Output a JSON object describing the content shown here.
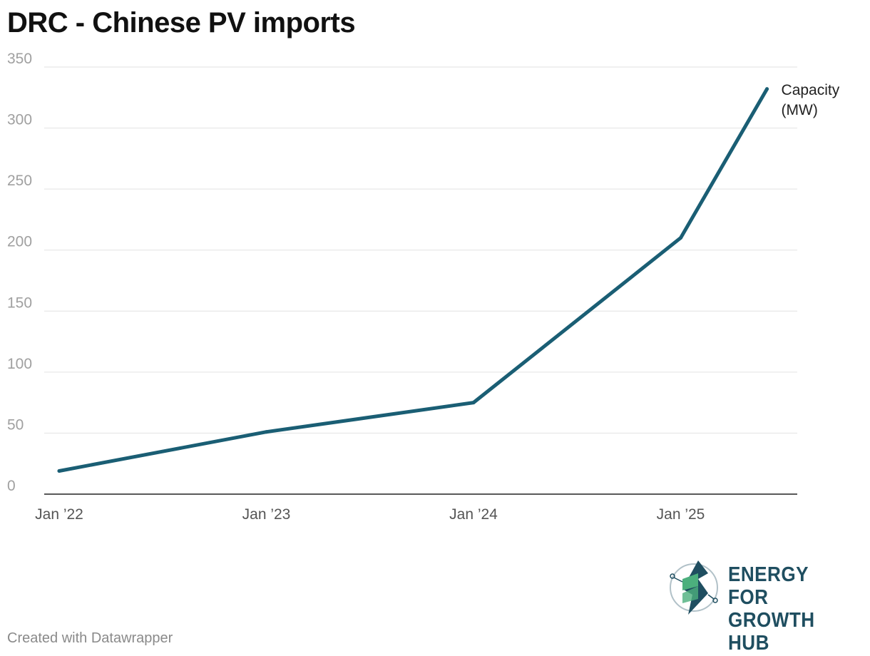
{
  "footer": {
    "credit": "Created with Datawrapper"
  },
  "logo": {
    "line1": "ENERGY FOR",
    "line2": "GROWTH HUB",
    "icon": "bolt-circuit-icon",
    "colors": [
      "#1f4e60",
      "#4caf7d"
    ]
  },
  "chart_data": {
    "type": "line",
    "title": "DRC - Chinese PV imports",
    "xlabel": "",
    "ylabel": "",
    "ylim": [
      0,
      350
    ],
    "xlim": [
      "2022-01",
      "2025-06"
    ],
    "y_ticks": [
      0,
      50,
      100,
      150,
      200,
      250,
      300,
      350
    ],
    "x_ticks": [
      {
        "value": "2022-01",
        "label": "Jan ’22"
      },
      {
        "value": "2023-01",
        "label": "Jan ’23"
      },
      {
        "value": "2024-01",
        "label": "Jan ’24"
      },
      {
        "value": "2025-01",
        "label": "Jan ’25"
      }
    ],
    "grid": true,
    "series": [
      {
        "name": "Capacity (MW)",
        "label_lines": [
          "Capacity",
          "(MW)"
        ],
        "color": "#1a5e74",
        "x": [
          "2022-01",
          "2023-01",
          "2024-01",
          "2025-01",
          "2025-06"
        ],
        "y": [
          19,
          51,
          75,
          210,
          332
        ]
      }
    ]
  }
}
